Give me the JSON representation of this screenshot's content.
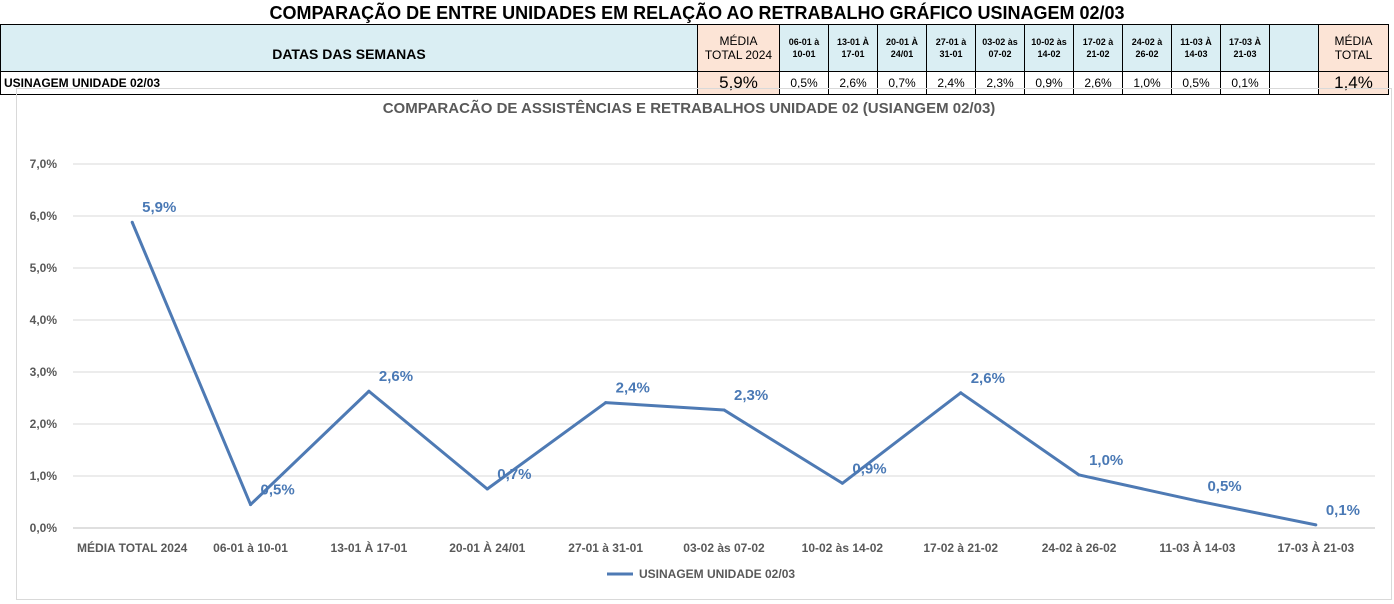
{
  "page_title": "COMPARAÇÃO DE ENTRE UNIDADES EM RELAÇÃO AO RETRABALHO GRÁFICO USINAGEM 02/03",
  "table": {
    "header_label": "DATAS DAS SEMANAS",
    "media_2024_header": [
      "MÉDIA",
      "TOTAL 2024"
    ],
    "week_headers": [
      [
        "06-01 à",
        "10-01"
      ],
      [
        "13-01 À",
        "17-01"
      ],
      [
        "20-01 À",
        "24/01"
      ],
      [
        "27-01 à",
        "31-01"
      ],
      [
        "03-02 às",
        "07-02"
      ],
      [
        "10-02 às",
        "14-02"
      ],
      [
        "17-02 à",
        "21-02"
      ],
      [
        "24-02 à",
        "26-02"
      ],
      [
        "11-03 À",
        "14-03"
      ],
      [
        "17-03 À",
        "21-03"
      ]
    ],
    "media_total_header": [
      "MÉDIA",
      "TOTAL"
    ],
    "row_label": "USINAGEM UNIDADE 02/03",
    "media_2024_value": "5,9%",
    "week_values": [
      "0,5%",
      "2,6%",
      "0,7%",
      "2,4%",
      "2,3%",
      "0,9%",
      "2,6%",
      "1,0%",
      "0,5%",
      "0,1%"
    ],
    "media_total_value": "1,4%"
  },
  "chart_data": {
    "type": "line",
    "title": "COMPARACÃO DE ASSISTÊNCIAS E RETRABALHOS UNIDADE 02  (USIANGEM 02/03)",
    "categories": [
      "MÉDIA TOTAL 2024",
      "06-01 à 10-01",
      "13-01 À 17-01",
      "20-01 À 24/01",
      "27-01 à 31-01",
      "03-02 às 07-02",
      "10-02 às 14-02",
      "17-02 à 21-02",
      "24-02 à 26-02",
      "11-03 À 14-03",
      "17-03 À 21-03"
    ],
    "series": [
      {
        "name": "USINAGEM UNIDADE 02/03",
        "values": [
          5.88,
          0.45,
          2.63,
          0.75,
          2.41,
          2.27,
          0.86,
          2.6,
          1.02,
          0.52,
          0.06
        ],
        "labels": [
          "5,9%",
          "0,5%",
          "2,6%",
          "0,7%",
          "2,4%",
          "2,3%",
          "0,9%",
          "2,6%",
          "1,0%",
          "0,5%",
          "0,1%"
        ],
        "color": "#4e7ab4"
      }
    ],
    "ylim": [
      0,
      7
    ],
    "yticks": [
      0,
      1,
      2,
      3,
      4,
      5,
      6,
      7
    ],
    "ytick_labels": [
      "0,0%",
      "1,0%",
      "2,0%",
      "3,0%",
      "4,0%",
      "5,0%",
      "6,0%",
      "7,0%"
    ],
    "grid": true,
    "legend": "bottom",
    "xlabel": "",
    "ylabel": ""
  }
}
